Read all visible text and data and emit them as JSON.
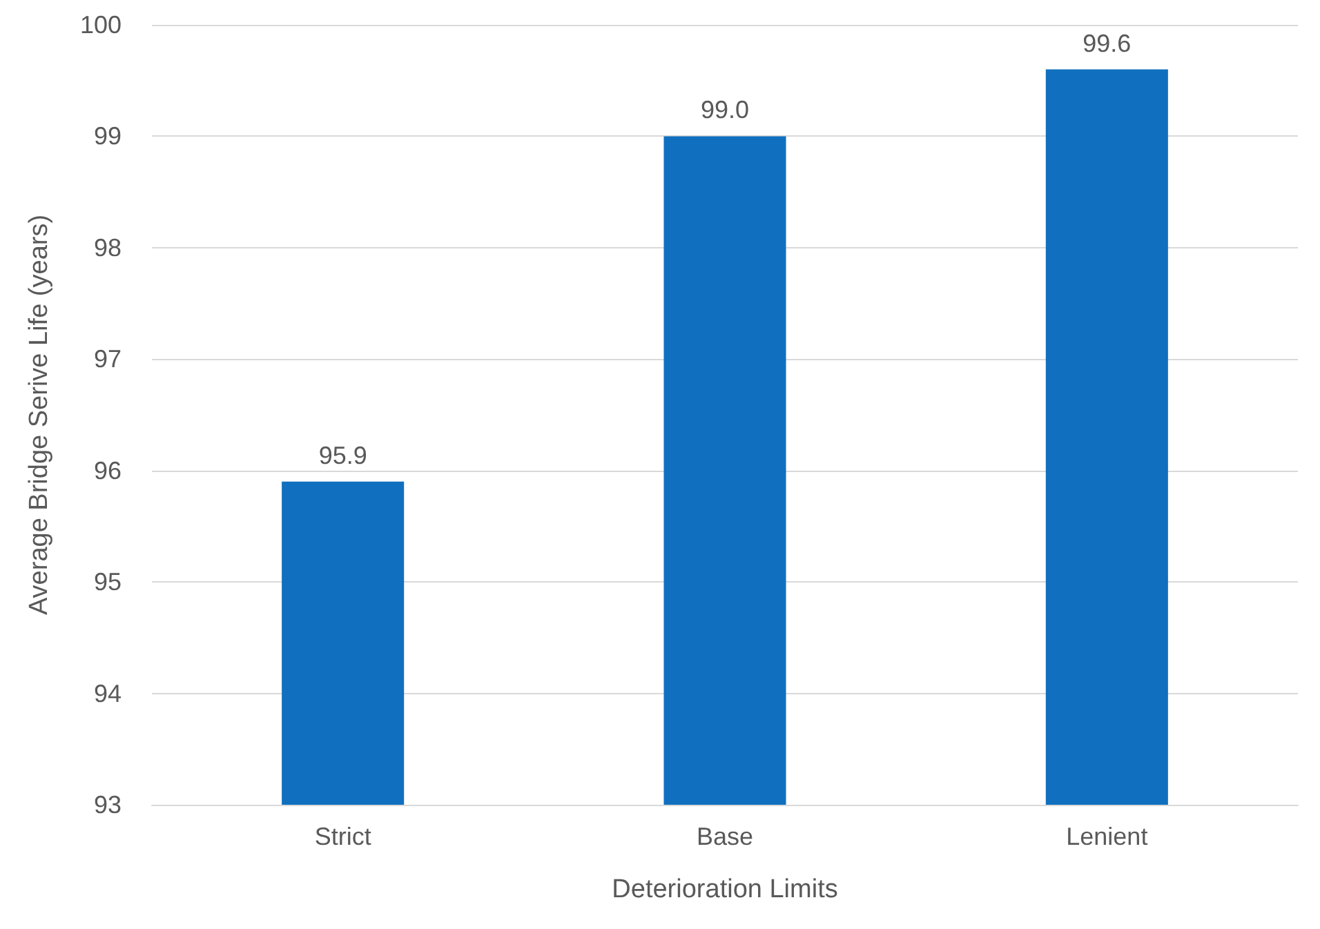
{
  "chart_data": {
    "type": "bar",
    "xlabel": "Deterioration Limits",
    "ylabel": "Average Bridge Serive Life (years)",
    "categories": [
      "Strict",
      "Base",
      "Lenient"
    ],
    "values": [
      95.9,
      99.0,
      99.6
    ],
    "value_labels": [
      "95.9",
      "99.0",
      "99.6"
    ],
    "color": "#1070bf",
    "ylim": [
      93,
      100
    ],
    "yticks": [
      93,
      94,
      95,
      96,
      97,
      98,
      99,
      100
    ],
    "grid": "y"
  }
}
